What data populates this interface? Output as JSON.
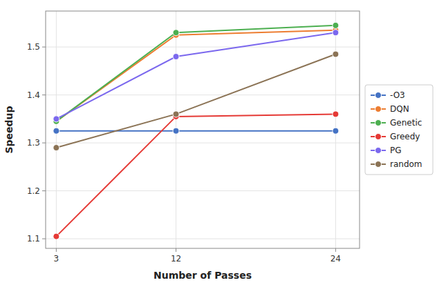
{
  "chart_data": {
    "type": "line",
    "xlabel": "Number of Passes",
    "ylabel": "Speedup",
    "x": [
      3,
      12,
      24
    ],
    "series": [
      {
        "name": "-O3",
        "color": "#4472C4",
        "marker": "circle",
        "values": [
          1.325,
          1.325,
          1.325
        ]
      },
      {
        "name": "DQN",
        "color": "#ED7D31",
        "marker": "circle",
        "values": [
          1.345,
          1.525,
          1.535
        ]
      },
      {
        "name": "Genetic",
        "color": "#4CAF50",
        "marker": "circle",
        "values": [
          1.345,
          1.53,
          1.545
        ]
      },
      {
        "name": "Greedy",
        "color": "#E53935",
        "marker": "circle",
        "values": [
          1.105,
          1.355,
          1.36
        ]
      },
      {
        "name": "PG",
        "color": "#7B68EE",
        "marker": "circle",
        "values": [
          1.35,
          1.48,
          1.53
        ]
      },
      {
        "name": "random",
        "color": "#8B7355",
        "marker": "circle",
        "values": [
          1.29,
          1.36,
          1.485
        ]
      }
    ],
    "xlim": [
      2.2,
      25.8
    ],
    "ylim": [
      1.08,
      1.575
    ],
    "xticks": [
      3,
      12,
      24
    ],
    "yticks": [
      1.1,
      1.2,
      1.3,
      1.4,
      1.5
    ],
    "grid": true,
    "legend": "right"
  }
}
